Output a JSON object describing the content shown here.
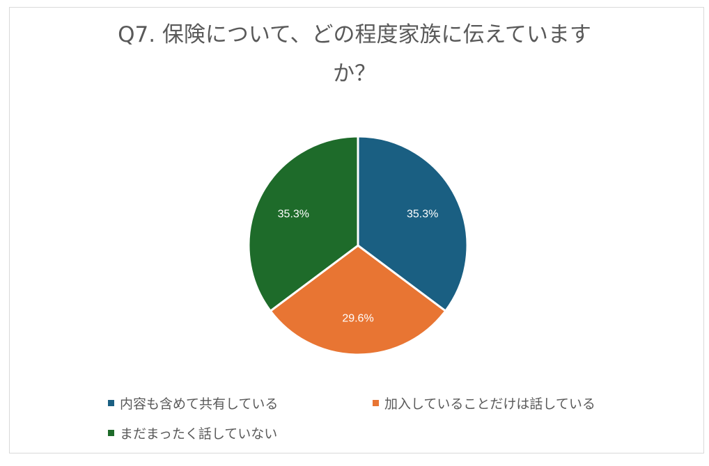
{
  "chart_data": {
    "type": "pie",
    "title": "Q7. 保険について、どの程度家族に伝えていますか？",
    "title_lines": [
      "Q7. 保険について、どの程度家族に伝えています",
      "か？"
    ],
    "categories": [
      "内容も含めて共有している",
      "加入していることだけは話している",
      "まだまったく話していない"
    ],
    "values": [
      35.3,
      29.6,
      35.3
    ],
    "data_labels": [
      "35.3%",
      "29.6%",
      "35.3%"
    ],
    "colors": [
      "#1a5f82",
      "#e87533",
      "#1e6b2a"
    ],
    "start_angle_deg": 0,
    "direction": "clockwise",
    "legend_position": "bottom"
  },
  "legend": {
    "items": [
      {
        "label": "内容も含めて共有している",
        "color": "#1a5f82"
      },
      {
        "label": "加入していることだけは話している",
        "color": "#e87533"
      },
      {
        "label": "まだまったく話していない",
        "color": "#1e6b2a"
      }
    ]
  }
}
